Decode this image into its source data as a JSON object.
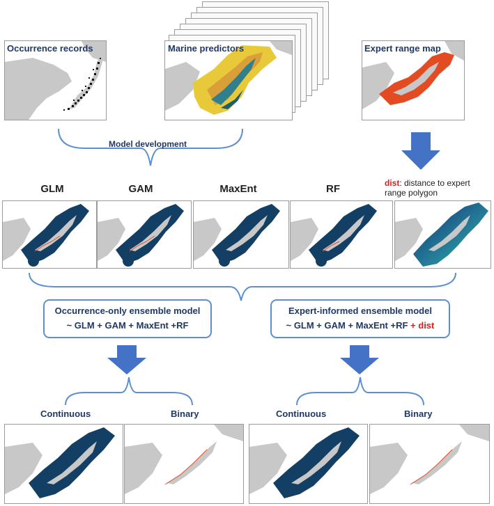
{
  "top_panels": {
    "occurrence_title": "Occurrence records",
    "predictors_title": "Marine predictors",
    "expert_title": "Expert range map"
  },
  "model_development_label": "Model development",
  "models": [
    "GLM",
    "GAM",
    "MaxEnt",
    "RF"
  ],
  "dist_label": {
    "keyword": "dist",
    "rest": ": distance to expert range polygon"
  },
  "occurrence_ensemble": {
    "title": "Occurrence-only ensemble model",
    "formula": "~ GLM + GAM + MaxEnt +RF"
  },
  "expert_ensemble": {
    "title": "Expert-informed ensemble model",
    "formula": "~ GLM + GAM + MaxEnt +RF",
    "extra": "+ dist"
  },
  "outputs": {
    "left_continuous": "Continuous",
    "left_binary": "Binary",
    "right_continuous": "Continuous",
    "right_binary": "Binary"
  },
  "colors": {
    "land": "#c8c8c8",
    "ocean_model": "#123f63",
    "expert_range": "#e34b23",
    "arrow": "#4472c4",
    "box_border": "#5b8fd0",
    "title_text": "#1f3864",
    "highlight": "#e21b1b"
  }
}
